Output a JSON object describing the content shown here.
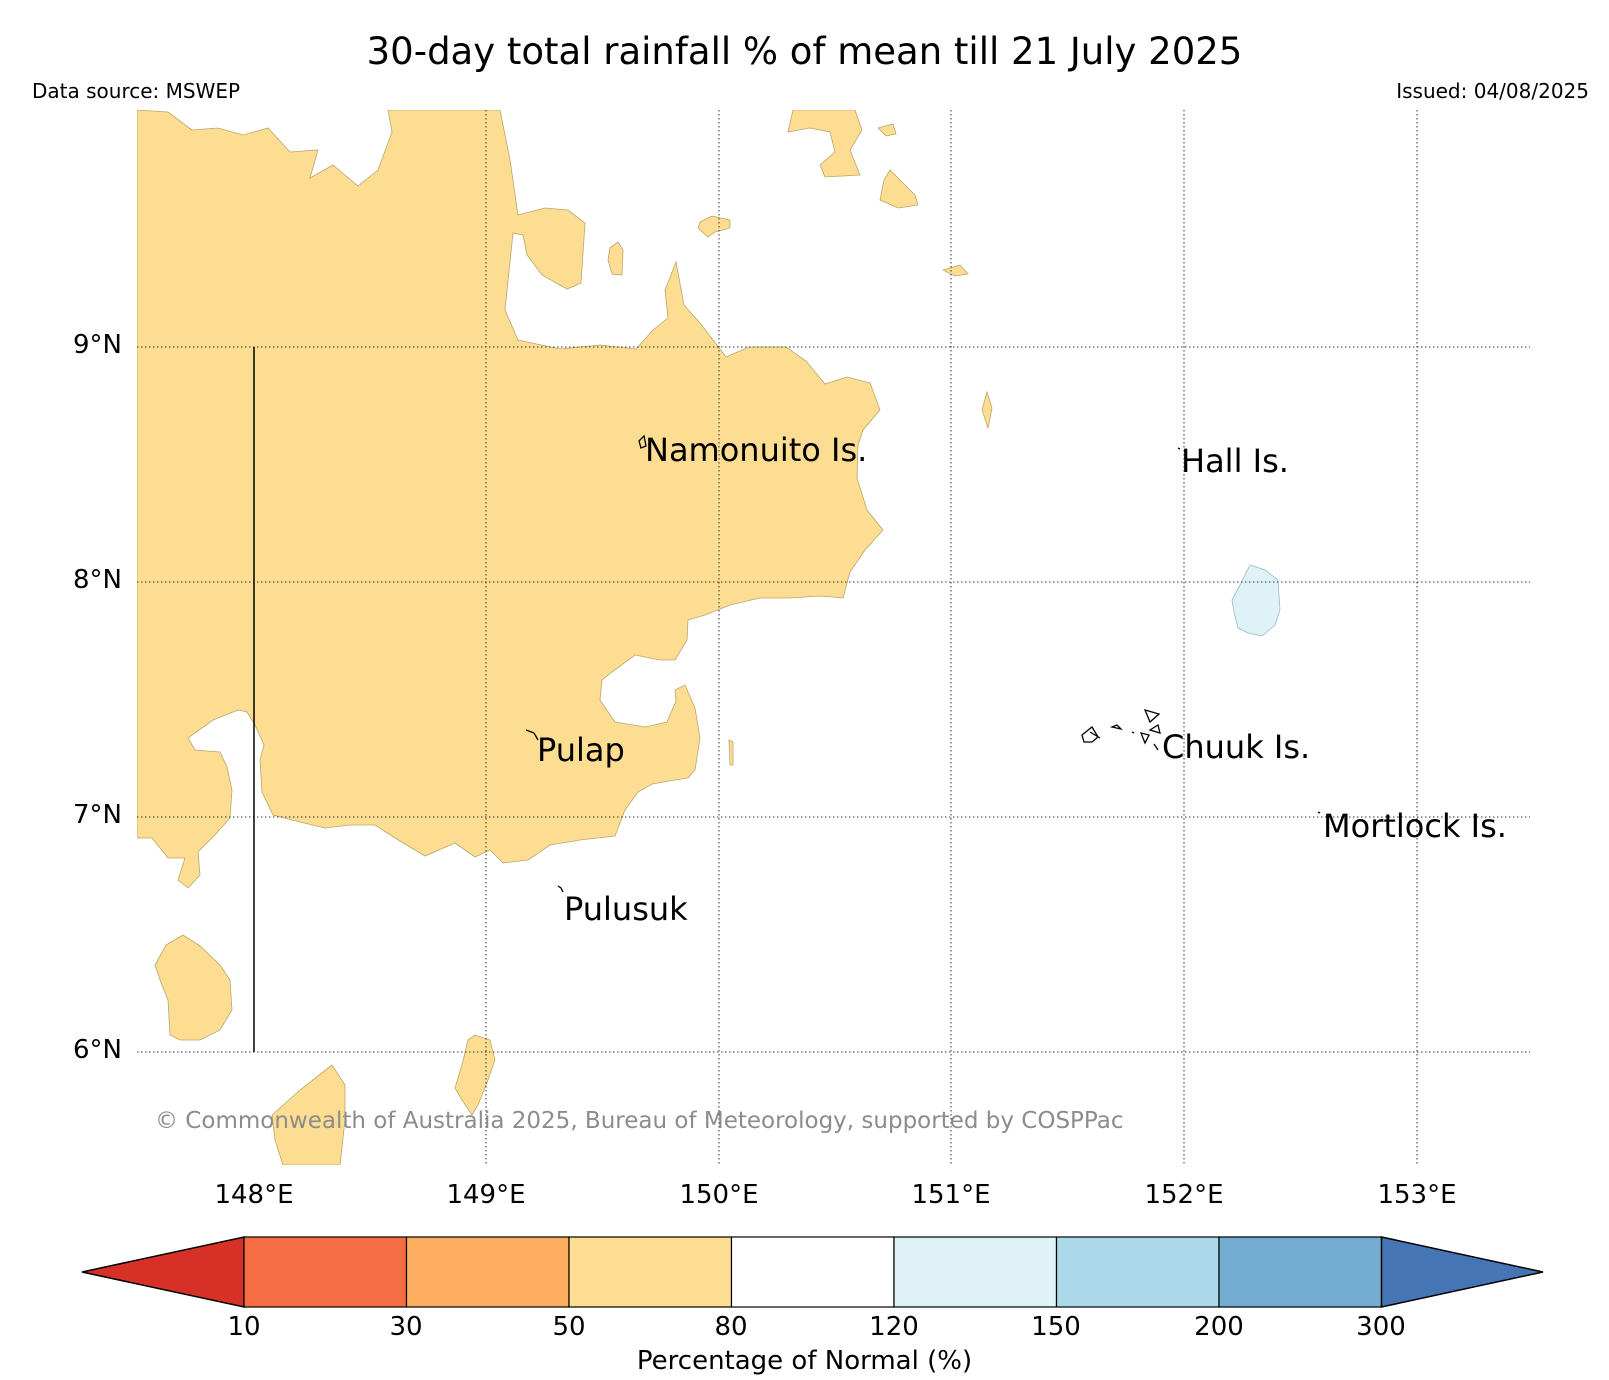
{
  "title": "30-day total rainfall % of mean till 21 July 2025",
  "data_source": "Data source: MSWEP",
  "issued": "Issued: 04/08/2025",
  "copyright": "© Commonwealth of Australia 2025, Bureau of Meteorology, supported by COSPPac",
  "map": {
    "lon_range": [
      147.5,
      153.5
    ],
    "lat_range": [
      5.5,
      10.0
    ],
    "latitude_labels": [
      "9°N",
      "8°N",
      "7°N",
      "6°N"
    ],
    "longitude_labels": [
      "148°E",
      "149°E",
      "150°E",
      "151°E",
      "152°E",
      "153°E"
    ],
    "places": [
      "Namonuito Is.",
      "Hall Is.",
      "Pulap",
      "Chuuk Is.",
      "Mortlock Is.",
      "Pulusuk"
    ],
    "region_colors": {
      "50_80": "#fddd92",
      "120_150": "#dff2f8"
    }
  },
  "colorbar": {
    "label": "Percentage of Normal (%)",
    "ticks": [
      "10",
      "30",
      "50",
      "80",
      "120",
      "150",
      "200",
      "300"
    ],
    "colors": [
      "#d73027",
      "#f46d43",
      "#fdae61",
      "#fddd92",
      "#ffffff",
      "#dff2f8",
      "#abd9e9",
      "#74add1",
      "#4575b4"
    ]
  }
}
